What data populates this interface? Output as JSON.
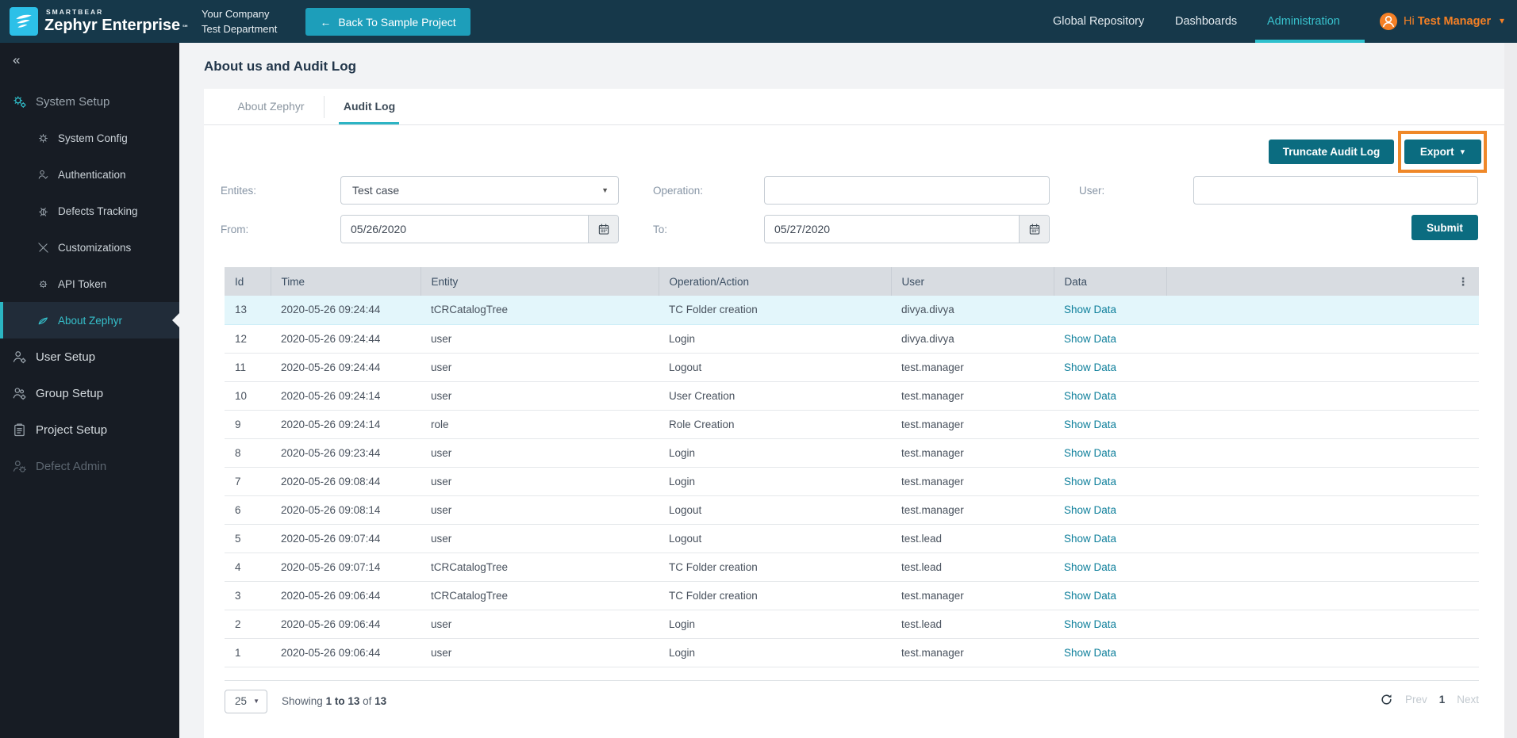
{
  "glyphs": {
    "back_arrow": "←",
    "collapse": "«",
    "caret_down": "▾",
    "select_caret": "▼",
    "trademark": "℠"
  },
  "topbar": {
    "brand": {
      "smartbear": "SMARTBEAR",
      "product": "Zephyr Enterprise"
    },
    "company_name": "Your Company",
    "department": "Test Department",
    "back_button_label": "Back To Sample Project",
    "nav": [
      {
        "label": "Global Repository"
      },
      {
        "label": "Dashboards"
      },
      {
        "label": "Administration"
      }
    ],
    "greeting": "Hi",
    "user_name": "Test Manager"
  },
  "sidebar": {
    "items": [
      {
        "label": "System Setup"
      },
      {
        "label": "System Config"
      },
      {
        "label": "Authentication"
      },
      {
        "label": "Defects Tracking"
      },
      {
        "label": "Customizations"
      },
      {
        "label": "API Token"
      },
      {
        "label": "About Zephyr"
      },
      {
        "label": "User Setup"
      },
      {
        "label": "Group Setup"
      },
      {
        "label": "Project Setup"
      },
      {
        "label": "Defect Admin"
      }
    ]
  },
  "page": {
    "title": "About us and Audit Log"
  },
  "tabs": [
    {
      "label": "About Zephyr"
    },
    {
      "label": "Audit Log"
    }
  ],
  "toolbar": {
    "truncate_label": "Truncate Audit Log",
    "export_label": "Export"
  },
  "filters": {
    "entities_label": "Entites:",
    "entities_value": "Test case",
    "operation_label": "Operation:",
    "operation_value": "",
    "user_label": "User:",
    "user_value": "",
    "from_label": "From:",
    "from_value": "05/26/2020",
    "to_label": "To:",
    "to_value": "05/27/2020",
    "submit_label": "Submit"
  },
  "table": {
    "columns": [
      "Id",
      "Time",
      "Entity",
      "Operation/Action",
      "User",
      "Data",
      ""
    ],
    "menu_glyph": "⋮",
    "show_data_label": "Show Data",
    "rows": [
      {
        "id": "13",
        "time": "2020-05-26 09:24:44",
        "entity": "tCRCatalogTree",
        "operation": "TC Folder creation",
        "user": "divya.divya",
        "highlighted": true
      },
      {
        "id": "12",
        "time": "2020-05-26 09:24:44",
        "entity": "user",
        "operation": "Login",
        "user": "divya.divya"
      },
      {
        "id": "11",
        "time": "2020-05-26 09:24:44",
        "entity": "user",
        "operation": "Logout",
        "user": "test.manager"
      },
      {
        "id": "10",
        "time": "2020-05-26 09:24:14",
        "entity": "user",
        "operation": "User Creation",
        "user": "test.manager"
      },
      {
        "id": "9",
        "time": "2020-05-26 09:24:14",
        "entity": "role",
        "operation": "Role Creation",
        "user": "test.manager"
      },
      {
        "id": "8",
        "time": "2020-05-26 09:23:44",
        "entity": "user",
        "operation": "Login",
        "user": "test.manager"
      },
      {
        "id": "7",
        "time": "2020-05-26 09:08:44",
        "entity": "user",
        "operation": "Login",
        "user": "test.manager"
      },
      {
        "id": "6",
        "time": "2020-05-26 09:08:14",
        "entity": "user",
        "operation": "Logout",
        "user": "test.manager"
      },
      {
        "id": "5",
        "time": "2020-05-26 09:07:44",
        "entity": "user",
        "operation": "Logout",
        "user": "test.lead"
      },
      {
        "id": "4",
        "time": "2020-05-26 09:07:14",
        "entity": "tCRCatalogTree",
        "operation": "TC Folder creation",
        "user": "test.lead"
      },
      {
        "id": "3",
        "time": "2020-05-26 09:06:44",
        "entity": "tCRCatalogTree",
        "operation": "TC Folder creation",
        "user": "test.manager"
      },
      {
        "id": "2",
        "time": "2020-05-26 09:06:44",
        "entity": "user",
        "operation": "Login",
        "user": "test.lead"
      },
      {
        "id": "1",
        "time": "2020-05-26 09:06:44",
        "entity": "user",
        "operation": "Login",
        "user": "test.manager"
      }
    ]
  },
  "pagination": {
    "page_size": "25",
    "showing_prefix": "Showing",
    "range": "1 to 13",
    "of_word": "of",
    "total": "13",
    "prev_label": "Prev",
    "current_page": "1",
    "next_label": "Next"
  },
  "colors": {
    "topbar": "#16384a",
    "sidebar": "#171c24",
    "accent_teal": "#0b6c80",
    "nav_active": "#35c1cc",
    "brand_cyan": "#2cc0e8",
    "user_orange": "#f58025",
    "highlight_box": "#ef8829",
    "link": "#0e7f9b",
    "row_highlight": "#e3f6fb"
  }
}
